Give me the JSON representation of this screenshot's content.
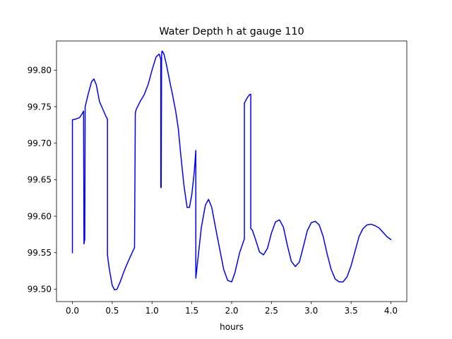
{
  "chart_data": {
    "type": "line",
    "title": "Water Depth h at gauge 110",
    "xlabel": "hours",
    "ylabel": "",
    "xlim": [
      -0.2,
      4.2
    ],
    "ylim": [
      99.483,
      99.84
    ],
    "xticks": [
      0.0,
      0.5,
      1.0,
      1.5,
      2.0,
      2.5,
      3.0,
      3.5,
      4.0
    ],
    "xtick_labels": [
      "0.0",
      "0.5",
      "1.0",
      "1.5",
      "2.0",
      "2.5",
      "3.0",
      "3.5",
      "4.0"
    ],
    "yticks": [
      99.5,
      99.55,
      99.6,
      99.65,
      99.7,
      99.75,
      99.8
    ],
    "ytick_labels": [
      "99.50",
      "99.55",
      "99.60",
      "99.65",
      "99.70",
      "99.75",
      "99.80"
    ],
    "grid": false,
    "series": [
      {
        "color": "#0000ff",
        "x": [
          0.0,
          0.0,
          0.04,
          0.09,
          0.12,
          0.14,
          0.145,
          0.15,
          0.155,
          0.16,
          0.2,
          0.24,
          0.27,
          0.3,
          0.34,
          0.38,
          0.42,
          0.44,
          0.44,
          0.46,
          0.5,
          0.53,
          0.56,
          0.6,
          0.65,
          0.7,
          0.75,
          0.78,
          0.79,
          0.8,
          0.85,
          0.9,
          0.95,
          1.0,
          1.05,
          1.09,
          1.11,
          1.11,
          1.115,
          1.12,
          1.125,
          1.13,
          1.15,
          1.18,
          1.22,
          1.26,
          1.3,
          1.33,
          1.36,
          1.4,
          1.44,
          1.47,
          1.5,
          1.53,
          1.55,
          1.55,
          1.58,
          1.62,
          1.67,
          1.71,
          1.75,
          1.8,
          1.85,
          1.9,
          1.95,
          2.0,
          2.04,
          2.1,
          2.16,
          2.16,
          2.2,
          2.23,
          2.24,
          2.24,
          2.26,
          2.3,
          2.35,
          2.4,
          2.45,
          2.5,
          2.55,
          2.6,
          2.65,
          2.7,
          2.75,
          2.8,
          2.85,
          2.9,
          2.95,
          3.0,
          3.05,
          3.1,
          3.15,
          3.2,
          3.25,
          3.3,
          3.35,
          3.4,
          3.45,
          3.5,
          3.55,
          3.6,
          3.65,
          3.7,
          3.75,
          3.8,
          3.85,
          3.9,
          3.95,
          4.0
        ],
        "y": [
          99.55,
          99.732,
          99.733,
          99.735,
          99.74,
          99.744,
          99.562,
          99.565,
          99.568,
          99.75,
          99.768,
          99.784,
          99.788,
          99.78,
          99.757,
          99.747,
          99.737,
          99.733,
          99.547,
          99.53,
          99.505,
          99.499,
          99.5,
          99.51,
          99.525,
          99.538,
          99.55,
          99.557,
          99.741,
          99.746,
          99.757,
          99.766,
          99.78,
          99.8,
          99.818,
          99.822,
          99.815,
          99.64,
          99.639,
          99.82,
          99.826,
          99.826,
          99.822,
          99.808,
          99.786,
          99.765,
          99.742,
          99.72,
          99.685,
          99.643,
          99.612,
          99.612,
          99.63,
          99.66,
          99.69,
          99.515,
          99.545,
          99.585,
          99.615,
          99.623,
          99.612,
          99.583,
          99.555,
          99.527,
          99.512,
          99.51,
          99.522,
          99.55,
          99.569,
          99.755,
          99.763,
          99.767,
          99.767,
          99.583,
          99.581,
          99.568,
          99.551,
          99.547,
          99.556,
          99.577,
          99.592,
          99.595,
          99.585,
          99.56,
          99.538,
          99.531,
          99.537,
          99.558,
          99.58,
          99.591,
          99.593,
          99.588,
          99.572,
          99.548,
          99.527,
          99.514,
          99.51,
          99.51,
          99.517,
          99.532,
          99.552,
          99.572,
          99.583,
          99.588,
          99.589,
          99.587,
          99.584,
          99.578,
          99.572,
          99.568
        ]
      }
    ]
  }
}
